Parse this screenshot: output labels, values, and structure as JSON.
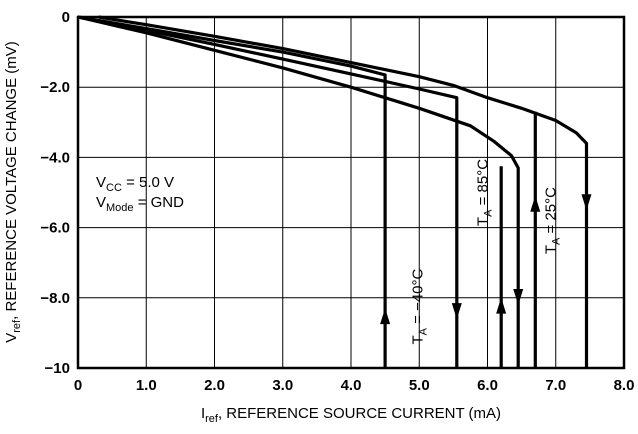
{
  "chart_data": {
    "type": "line",
    "xlabel": {
      "main": "I",
      "sub": "ref",
      "rest": ", REFERENCE SOURCE CURRENT (mA)"
    },
    "ylabel": {
      "main": "V",
      "sub": "ref",
      "rest": ", REFERENCE VOLTAGE CHANGE (mV)"
    },
    "xlim": [
      0,
      8.0
    ],
    "ylim": [
      -10,
      0
    ],
    "x_ticks": [
      "0",
      "1.0",
      "2.0",
      "3.0",
      "4.0",
      "5.0",
      "6.0",
      "7.0",
      "8.0"
    ],
    "y_ticks": [
      "0",
      "−2.0",
      "−4.0",
      "−6.0",
      "−8.0",
      "−10"
    ],
    "grid": true,
    "conditions": [
      {
        "main": "V",
        "sub": "CC",
        "rest": " = 5.0 V"
      },
      {
        "main": "V",
        "sub": "Mode",
        "rest": " = GND"
      }
    ],
    "series": [
      {
        "name_main": "T",
        "name_sub": "A",
        "name_rest": " = −40°C",
        "x": [
          0,
          1.0,
          2.0,
          3.0,
          4.0,
          4.5,
          4.5
        ],
        "y": [
          0,
          -0.33,
          -0.67,
          -1.0,
          -1.4,
          -1.65,
          -10
        ]
      },
      {
        "name_main": "T",
        "name_sub": "A",
        "name_rest": " = 85°C",
        "x": [
          0,
          1.0,
          2.0,
          3.0,
          4.0,
          5.0,
          5.75,
          6.1,
          6.35,
          6.45,
          6.45
        ],
        "y": [
          0,
          -0.45,
          -0.95,
          -1.45,
          -2.0,
          -2.6,
          -3.1,
          -3.55,
          -3.95,
          -4.3,
          -10
        ]
      },
      {
        "name_main": "T",
        "name_sub": "A",
        "name_rest": " = 25°C",
        "x": [
          0,
          1.0,
          2.0,
          3.0,
          4.0,
          5.0,
          5.55,
          5.55
        ],
        "y": [
          0,
          -0.38,
          -0.78,
          -1.2,
          -1.62,
          -2.05,
          -2.3,
          -10
        ]
      },
      {
        "name_main": "T",
        "name_sub": "A",
        "name_rest": " = 25°C",
        "x": [
          0.3,
          1.0,
          2.0,
          3.0,
          4.0,
          5.0,
          5.5,
          6.0,
          6.5,
          7.0,
          7.3,
          7.45,
          7.45
        ],
        "y": [
          0,
          -0.22,
          -0.55,
          -0.9,
          -1.3,
          -1.7,
          -1.95,
          -2.3,
          -2.6,
          -2.95,
          -3.3,
          -3.6,
          -10
        ]
      },
      {
        "name_main": "T",
        "name_sub": "A",
        "name_rest": " = 85°C",
        "x": [
          6.2,
          6.2
        ],
        "y": [
          -10,
          -4.25
        ]
      },
      {
        "name_main": "T",
        "name_sub": "A",
        "name_rest": " = 85°C",
        "x": [
          6.7,
          6.7
        ],
        "y": [
          -10,
          -2.7
        ]
      }
    ],
    "arrows": [
      {
        "x": 4.5,
        "y": -8.55,
        "dir": "up"
      },
      {
        "x": 5.55,
        "y": -8.35,
        "dir": "down"
      },
      {
        "x": 6.2,
        "y": -8.25,
        "dir": "up"
      },
      {
        "x": 6.45,
        "y": -7.95,
        "dir": "down"
      },
      {
        "x": 6.7,
        "y": -5.35,
        "dir": "up"
      },
      {
        "x": 7.45,
        "y": -5.25,
        "dir": "down"
      }
    ],
    "curve_labels": [
      {
        "series": 0,
        "x": 5.05,
        "y": -8.25
      },
      {
        "series": 1,
        "x": 6.0,
        "y": -5.0
      },
      {
        "series": 2,
        "x": 7.0,
        "y": -5.8
      }
    ]
  }
}
